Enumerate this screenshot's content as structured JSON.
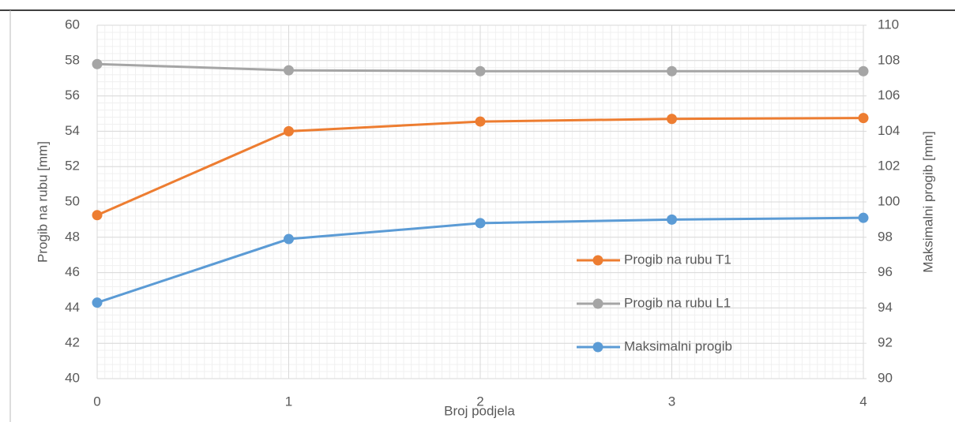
{
  "chart_data": {
    "type": "line",
    "x": [
      0,
      1,
      2,
      3,
      4
    ],
    "xlim": [
      0,
      4
    ],
    "xticks": [
      0,
      1,
      2,
      3,
      4
    ],
    "ylim": [
      40,
      60
    ],
    "yticks": [
      40,
      42,
      44,
      46,
      48,
      50,
      52,
      54,
      56,
      58,
      60
    ],
    "y2lim": [
      90,
      110
    ],
    "y2ticks": [
      90,
      92,
      94,
      96,
      98,
      100,
      102,
      104,
      106,
      108,
      110
    ],
    "xlabel": "Broj podjela",
    "ylabel": "Progib na rubu [mm]",
    "y2label": "Maksimalni progib [mm]",
    "grid": true,
    "minor_grid": true,
    "legend": "inside-right",
    "series": [
      {
        "name": "Progib na rubu T1",
        "color": "#ed7d31",
        "values": [
          49.25,
          54.0,
          54.55,
          54.7,
          54.75
        ]
      },
      {
        "name": "Progib na rubu L1",
        "color": "#a5a5a5",
        "values": [
          57.8,
          57.45,
          57.4,
          57.4,
          57.4
        ]
      },
      {
        "name": "Maksimalni progib",
        "color": "#5b9bd5",
        "axis": "y2",
        "values": [
          94.3,
          97.9,
          98.8,
          99.0,
          99.1
        ]
      }
    ]
  }
}
